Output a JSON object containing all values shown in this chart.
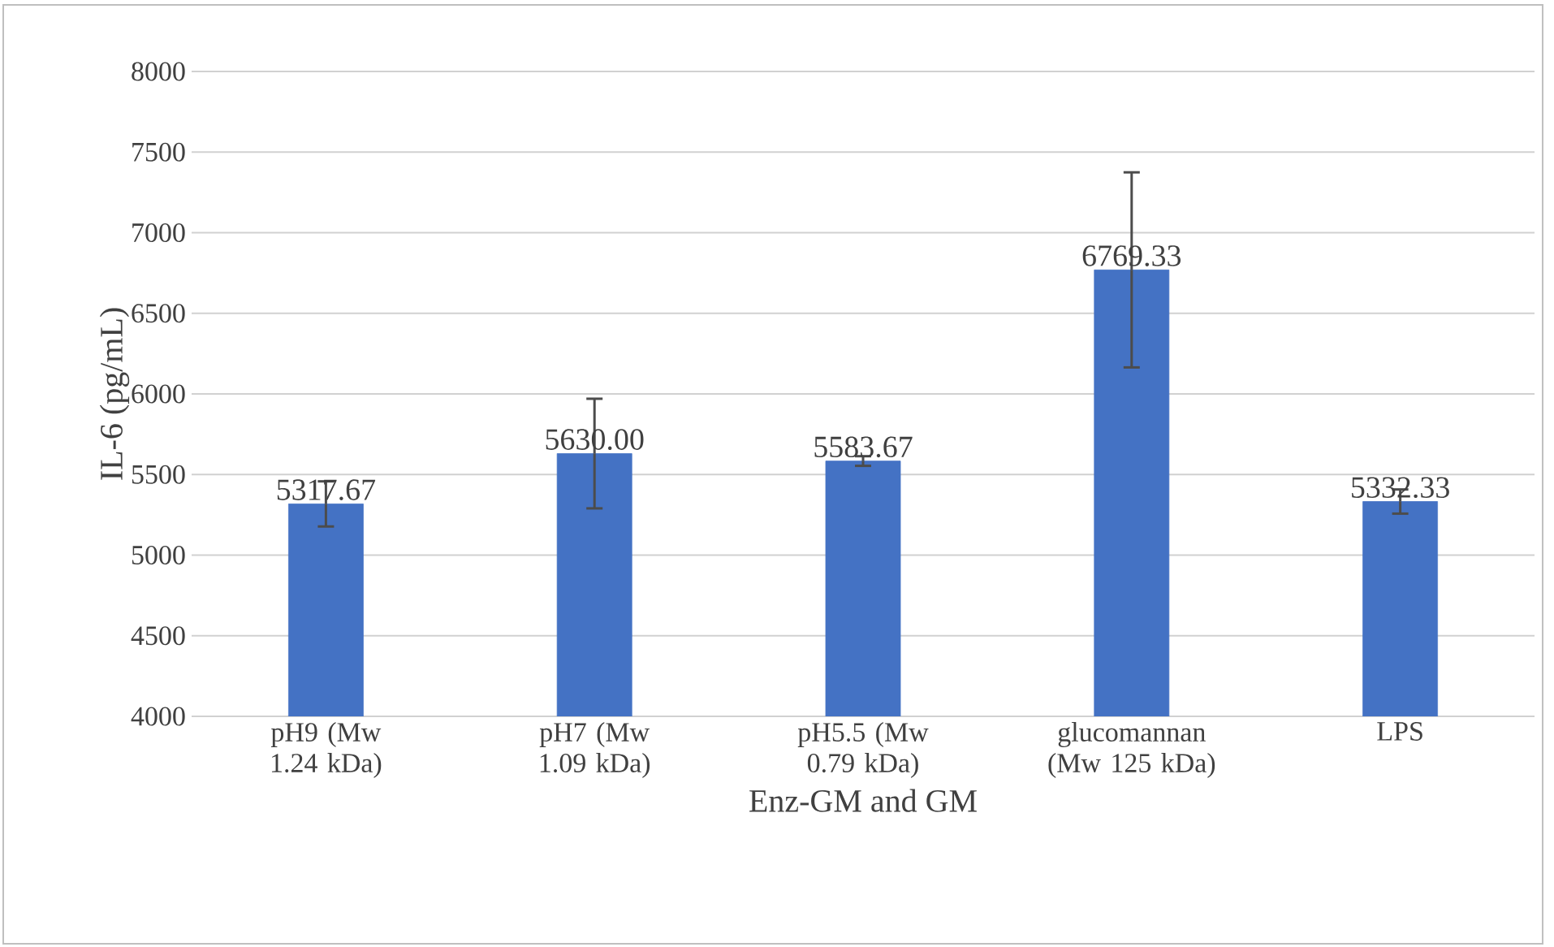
{
  "chart_data": {
    "type": "bar",
    "xlabel": "Enz-GM and GM",
    "ylabel": "IL-6 (pg/mL)",
    "categories": [
      "pH9 (Mw 1.24 kDa)",
      "pH7 (Mw 1.09 kDa)",
      "pH5.5 (Mw 0.79 kDa)",
      "glucomannan (Mw 125 kDa)",
      "LPS"
    ],
    "values": [
      5317.67,
      5630.0,
      5583.67,
      6769.33,
      5332.33
    ],
    "value_labels": [
      "5317.67",
      "5630.00",
      "5583.67",
      "6769.33",
      "5332.33"
    ],
    "errors": [
      140,
      340,
      30,
      605,
      75
    ],
    "color": "#4472c4",
    "ylim": [
      4000,
      8000
    ],
    "yticks": [
      4000,
      4500,
      5000,
      5500,
      6000,
      6500,
      7000,
      7500,
      8000
    ],
    "grid": "y"
  }
}
